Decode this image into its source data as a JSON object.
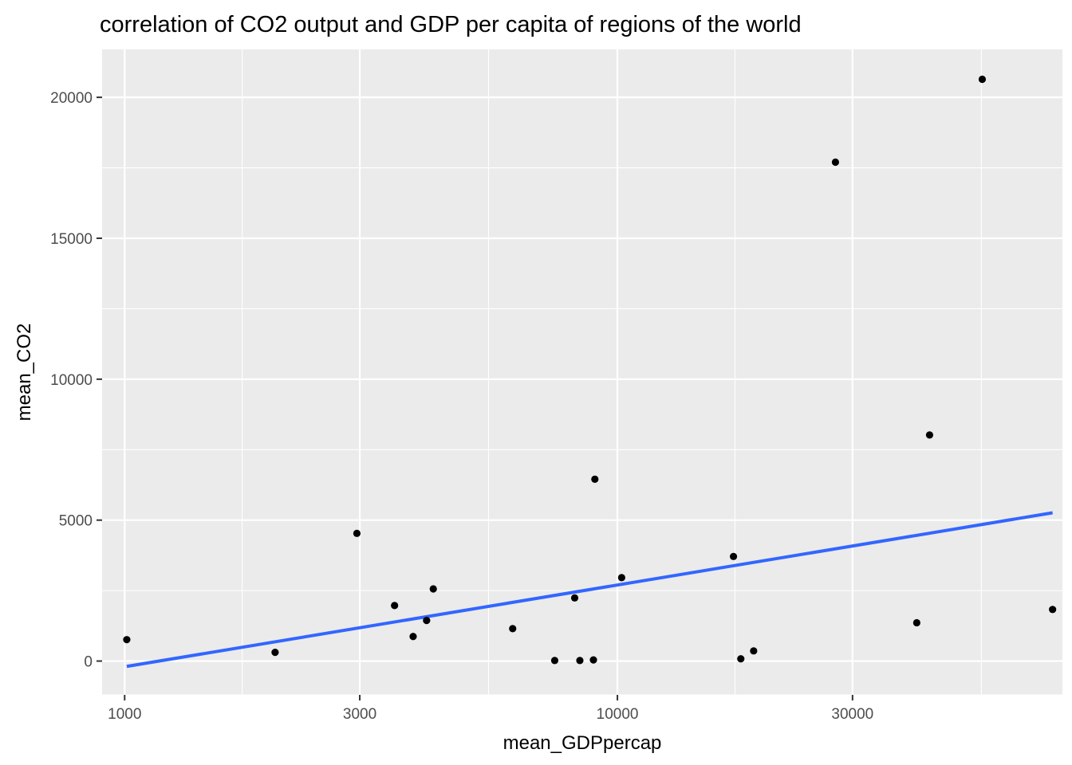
{
  "chart_data": {
    "type": "scatter",
    "title": "correlation of CO2 output and GDP per capita of regions of the world",
    "xlabel": "mean_GDPpercap",
    "ylabel": "mean_CO2",
    "x_scale": "log10",
    "xlim": [
      900,
      80000
    ],
    "ylim": [
      -1200,
      21700
    ],
    "x_ticks": [
      {
        "value": 1000,
        "label": "1000"
      },
      {
        "value": 3000,
        "label": "3000"
      },
      {
        "value": 10000,
        "label": "10000"
      },
      {
        "value": 30000,
        "label": "30000"
      }
    ],
    "x_minor_ticks": [
      1732,
      5477,
      17321,
      54772
    ],
    "y_ticks": [
      {
        "value": 0,
        "label": "0"
      },
      {
        "value": 5000,
        "label": "5000"
      },
      {
        "value": 10000,
        "label": "10000"
      },
      {
        "value": 15000,
        "label": "15000"
      },
      {
        "value": 20000,
        "label": "20000"
      }
    ],
    "y_minor_ticks": [
      -1200,
      2500,
      7500,
      12500,
      17500
    ],
    "grid": true,
    "panel_background": "#EBEBEB",
    "grid_color": "#FFFFFF",
    "point_color": "#000000",
    "line_color": "#3366FF",
    "points": [
      {
        "x": 1010,
        "y": 760
      },
      {
        "x": 2020,
        "y": 310
      },
      {
        "x": 2960,
        "y": 4530
      },
      {
        "x": 3530,
        "y": 1970
      },
      {
        "x": 3850,
        "y": 870
      },
      {
        "x": 4100,
        "y": 1440
      },
      {
        "x": 4230,
        "y": 2560
      },
      {
        "x": 6130,
        "y": 1150
      },
      {
        "x": 7460,
        "y": 20
      },
      {
        "x": 8190,
        "y": 2240
      },
      {
        "x": 8390,
        "y": 20
      },
      {
        "x": 8940,
        "y": 40
      },
      {
        "x": 9000,
        "y": 6450
      },
      {
        "x": 10200,
        "y": 2960
      },
      {
        "x": 17200,
        "y": 3710
      },
      {
        "x": 17800,
        "y": 80
      },
      {
        "x": 18900,
        "y": 360
      },
      {
        "x": 27700,
        "y": 17700
      },
      {
        "x": 40500,
        "y": 1360
      },
      {
        "x": 43000,
        "y": 8020
      },
      {
        "x": 55000,
        "y": 20640
      },
      {
        "x": 76400,
        "y": 1830
      }
    ],
    "fit_line": {
      "method": "linear on log10(x)",
      "start": {
        "x": 1010,
        "y": -190
      },
      "end": {
        "x": 76400,
        "y": 5260
      }
    }
  }
}
